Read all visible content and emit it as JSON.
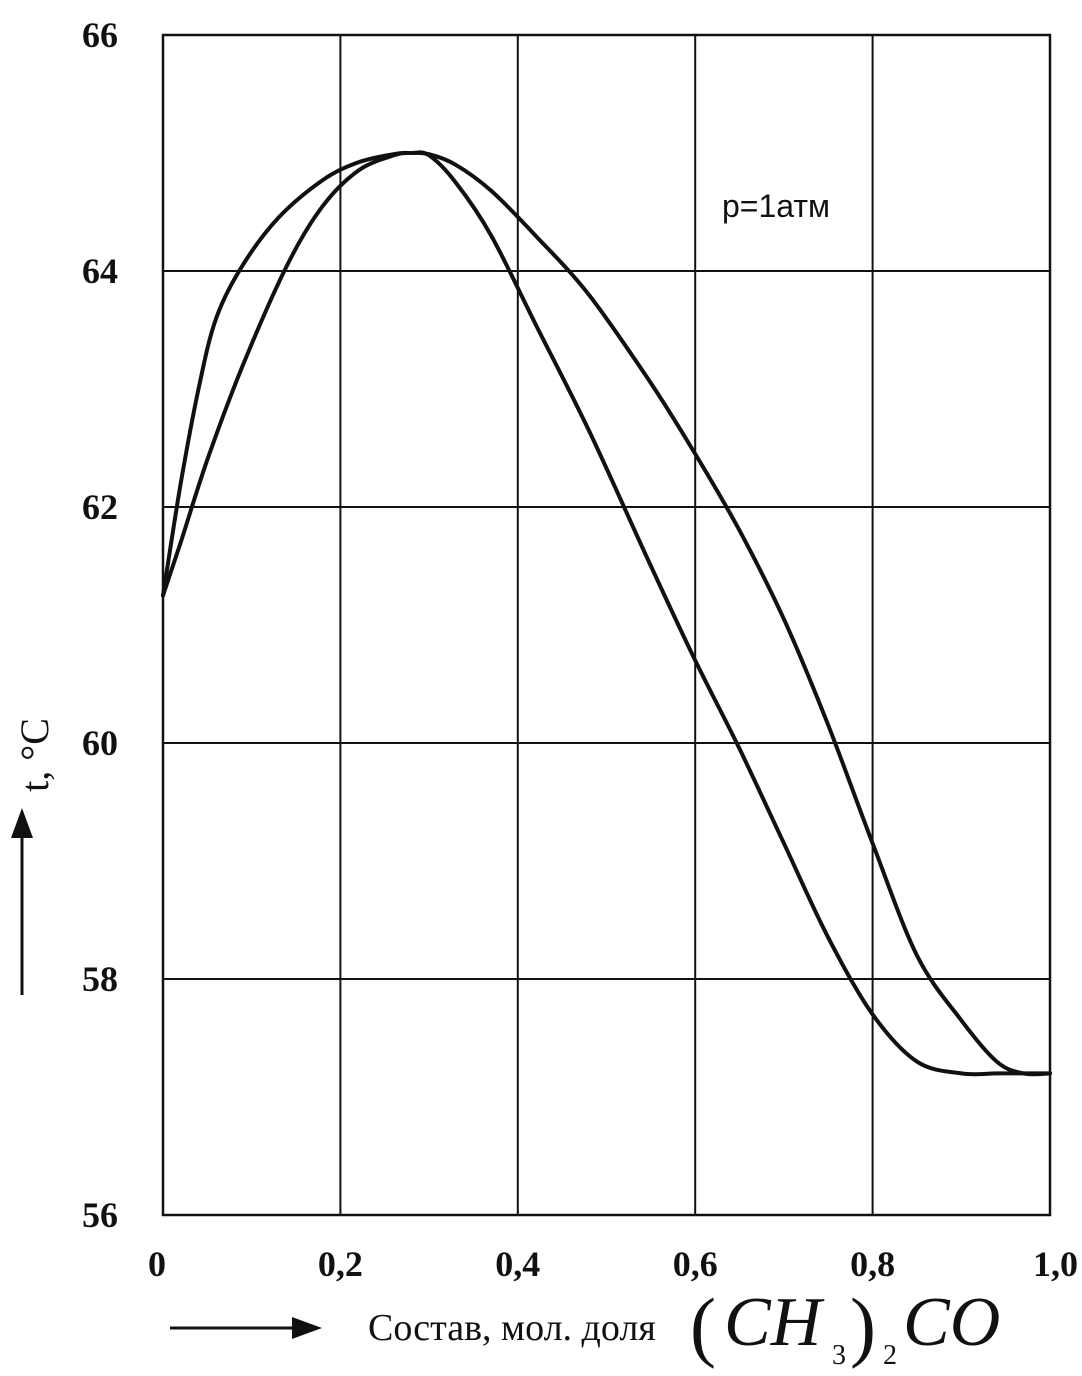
{
  "chart_data": {
    "type": "line",
    "title": "",
    "annotation": "p=1атм",
    "xlabel": "Состав, мол. доля",
    "xlabel_formula": {
      "open": "(",
      "ch": "CH",
      "sub3": "3",
      "close": ")",
      "sub2": "2",
      "co": "CO"
    },
    "ylabel": "t, °C",
    "xlim": [
      0,
      1.0
    ],
    "ylim": [
      56,
      66
    ],
    "x_ticks": [
      {
        "value": 0,
        "label": "0"
      },
      {
        "value": 0.2,
        "label": "0,2"
      },
      {
        "value": 0.4,
        "label": "0,4"
      },
      {
        "value": 0.6,
        "label": "0,6"
      },
      {
        "value": 0.8,
        "label": "0,8"
      },
      {
        "value": 1.0,
        "label": "1,0"
      }
    ],
    "y_ticks": [
      {
        "value": 56,
        "label": "56"
      },
      {
        "value": 58,
        "label": "58"
      },
      {
        "value": 60,
        "label": "60"
      },
      {
        "value": 62,
        "label": "62"
      },
      {
        "value": 64,
        "label": "64"
      },
      {
        "value": 66,
        "label": "66"
      }
    ],
    "grid": true,
    "series": [
      {
        "x": [
          0.0,
          0.02,
          0.04,
          0.06,
          0.09,
          0.13,
          0.18,
          0.22,
          0.26,
          0.28,
          0.3,
          0.33,
          0.37,
          0.42,
          0.48,
          0.55,
          0.6,
          0.65,
          0.7,
          0.75,
          0.8,
          0.85,
          0.9,
          0.94,
          0.97,
          0.99,
          1.0
        ],
        "y": [
          61.25,
          62.2,
          63.0,
          63.6,
          64.05,
          64.45,
          64.77,
          64.92,
          64.99,
          65.0,
          64.98,
          64.75,
          64.3,
          63.55,
          62.65,
          61.5,
          60.7,
          59.95,
          59.15,
          58.35,
          57.7,
          57.3,
          57.2,
          57.2,
          57.2,
          57.2,
          57.2
        ]
      },
      {
        "x": [
          0.0,
          0.02,
          0.05,
          0.09,
          0.14,
          0.18,
          0.22,
          0.26,
          0.28,
          0.3,
          0.33,
          0.37,
          0.42,
          0.48,
          0.55,
          0.6,
          0.65,
          0.7,
          0.75,
          0.8,
          0.85,
          0.9,
          0.94,
          0.97,
          1.0
        ],
        "y": [
          61.25,
          61.7,
          62.4,
          63.2,
          64.05,
          64.55,
          64.85,
          64.98,
          65.0,
          64.99,
          64.9,
          64.68,
          64.3,
          63.8,
          63.05,
          62.45,
          61.8,
          61.05,
          60.15,
          59.15,
          58.2,
          57.65,
          57.3,
          57.2,
          57.2
        ]
      }
    ]
  }
}
